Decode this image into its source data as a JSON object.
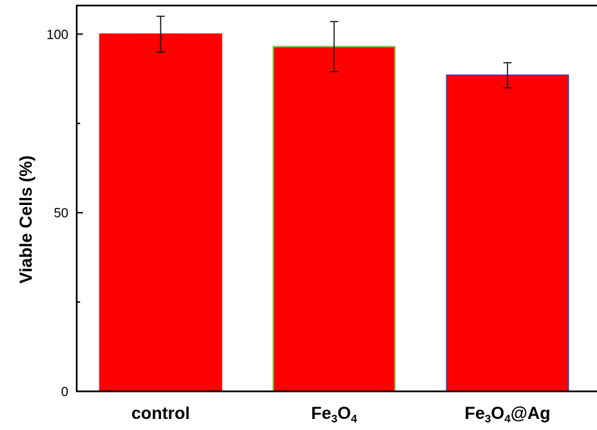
{
  "chart_data": {
    "type": "bar",
    "categories": [
      "control",
      "Fe3O4",
      "Fe3O4@Ag"
    ],
    "category_parts": [
      [
        {
          "t": "control",
          "sub": false
        }
      ],
      [
        {
          "t": "Fe",
          "sub": false
        },
        {
          "t": "3",
          "sub": true
        },
        {
          "t": "O",
          "sub": false
        },
        {
          "t": "4",
          "sub": true
        }
      ],
      [
        {
          "t": "Fe",
          "sub": false
        },
        {
          "t": "3",
          "sub": true
        },
        {
          "t": "O",
          "sub": false
        },
        {
          "t": "4",
          "sub": true
        },
        {
          "t": "@Ag",
          "sub": false
        }
      ]
    ],
    "values": [
      100,
      96.5,
      88.5
    ],
    "errors": [
      5,
      7,
      3.5
    ],
    "bar_color": "#ff0000",
    "bar_edge_colors": [
      "#ff0000",
      "#7fbf3f",
      "#3f3f9f"
    ],
    "ylabel": "Viable Cells (%)",
    "xlabel": "",
    "title": "",
    "ylim": [
      0,
      108
    ],
    "yticks_major": [
      0,
      50,
      100
    ],
    "yticks_minor": [
      25,
      75
    ],
    "grid": false,
    "legend": "none"
  }
}
